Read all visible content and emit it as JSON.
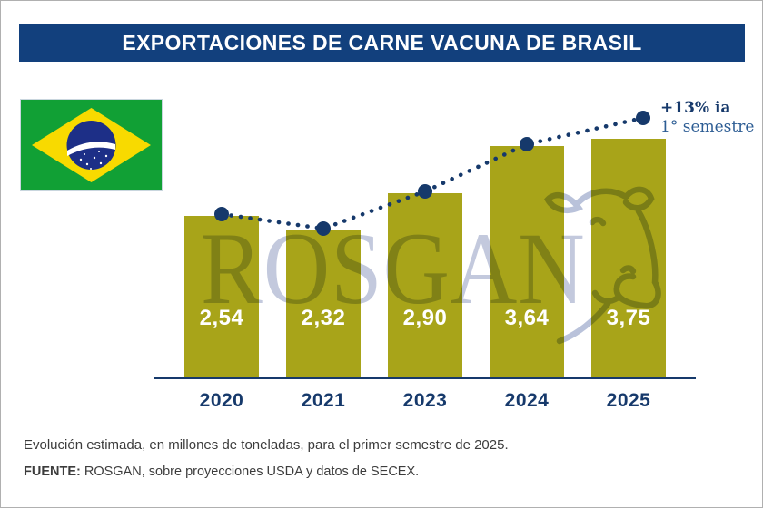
{
  "header": {
    "title": "EXPORTACIONES DE CARNE VACUNA DE BRASIL"
  },
  "watermark": {
    "text": "ROSGAN"
  },
  "flag": {
    "country": "Brazil"
  },
  "footer": {
    "note": "Evolución estimada, en millones de toneladas, para el primer semestre de 2025.",
    "source_label": "FUENTE:",
    "source_text": " ROSGAN, sobre proyecciones USDA y datos de SECEX."
  },
  "colors": {
    "title_bar": "#12407d",
    "bar": "#a8a419",
    "navy": "#16396b",
    "annotation_secondary": "#2d5d94",
    "watermark": "#c3c9dd",
    "flag_green": "#11a035",
    "flag_yellow": "#f8da00",
    "flag_blue": "#1d2f87"
  },
  "chart_data": {
    "type": "bar",
    "overlay": "dotted trend line with point markers",
    "title": "Exportaciones de carne vacuna de Brasil",
    "unit": "millones de toneladas, primer semestre",
    "categories": [
      "2020",
      "2021",
      "2023",
      "2024",
      "2025"
    ],
    "values": [
      2.54,
      2.32,
      2.9,
      3.64,
      3.75
    ],
    "value_labels": [
      "2,54",
      "2,32",
      "2,90",
      "3,64",
      "3,75"
    ],
    "annotation": {
      "line1": "+13% ia",
      "line2": "1° semestre"
    },
    "xlabel": "",
    "ylabel": "millones de toneladas",
    "ylim": [
      0,
      4.2
    ],
    "grid": false,
    "legend": false
  }
}
